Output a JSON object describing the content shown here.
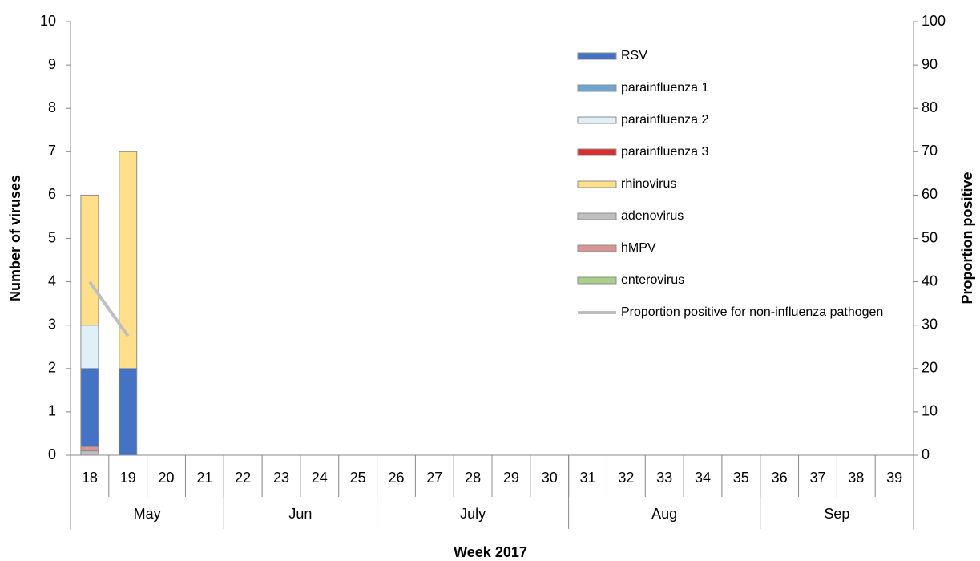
{
  "chart_data": {
    "type": "bar",
    "x_label": "Week 2017",
    "y_label": "Number of viruses",
    "y2_label": "Proportion positive",
    "categories": [
      "18",
      "19",
      "20",
      "21",
      "22",
      "23",
      "24",
      "25",
      "26",
      "27",
      "28",
      "29",
      "30",
      "31",
      "32",
      "33",
      "34",
      "35",
      "36",
      "37",
      "38",
      "39"
    ],
    "months": [
      "May",
      null,
      null,
      null,
      "Jun",
      null,
      null,
      null,
      "July",
      null,
      null,
      null,
      null,
      "Aug",
      null,
      null,
      null,
      null,
      "Sep",
      null,
      null,
      null
    ],
    "ylim": [
      0,
      10
    ],
    "yticks": [
      0,
      1,
      2,
      3,
      4,
      5,
      6,
      7,
      8,
      9,
      10
    ],
    "y2lim": [
      0,
      100
    ],
    "y2ticks": [
      0,
      10,
      20,
      30,
      40,
      50,
      60,
      70,
      80,
      90,
      100
    ],
    "series": [
      {
        "name": "RSV",
        "color": "#4472c4",
        "values": [
          1.8,
          2,
          0,
          0,
          0,
          0,
          0,
          0,
          0,
          0,
          0,
          0,
          0,
          0,
          0,
          0,
          0,
          0,
          0,
          0,
          0,
          0
        ]
      },
      {
        "name": "parainfluenza 1",
        "color": "#6fa3d0",
        "values": [
          0,
          0,
          0,
          0,
          0,
          0,
          0,
          0,
          0,
          0,
          0,
          0,
          0,
          0,
          0,
          0,
          0,
          0,
          0,
          0,
          0,
          0
        ]
      },
      {
        "name": "parainfluenza 2",
        "color": "#dff0f8",
        "values": [
          1,
          0,
          0,
          0,
          0,
          0,
          0,
          0,
          0,
          0,
          0,
          0,
          0,
          0,
          0,
          0,
          0,
          0,
          0,
          0,
          0,
          0
        ]
      },
      {
        "name": "parainfluenza 3",
        "color": "#d62f2f",
        "values": [
          0,
          0,
          0,
          0,
          0,
          0,
          0,
          0,
          0,
          0,
          0,
          0,
          0,
          0,
          0,
          0,
          0,
          0,
          0,
          0,
          0,
          0
        ]
      },
      {
        "name": "rhinovirus",
        "color": "#ffdf8a",
        "values": [
          3,
          5,
          0,
          0,
          0,
          0,
          0,
          0,
          0,
          0,
          0,
          0,
          0,
          0,
          0,
          0,
          0,
          0,
          0,
          0,
          0,
          0
        ]
      },
      {
        "name": "adenovirus",
        "color": "#bfbfbf",
        "values": [
          0.1,
          0,
          0,
          0,
          0,
          0,
          0,
          0,
          0,
          0,
          0,
          0,
          0,
          0,
          0,
          0,
          0,
          0,
          0,
          0,
          0,
          0
        ]
      },
      {
        "name": "hMPV",
        "color": "#d99594",
        "values": [
          0.1,
          0,
          0,
          0,
          0,
          0,
          0,
          0,
          0,
          0,
          0,
          0,
          0,
          0,
          0,
          0,
          0,
          0,
          0,
          0,
          0,
          0
        ]
      },
      {
        "name": "enterovirus",
        "color": "#a9cf8a",
        "values": [
          0,
          0,
          0,
          0,
          0,
          0,
          0,
          0,
          0,
          0,
          0,
          0,
          0,
          0,
          0,
          0,
          0,
          0,
          0,
          0,
          0,
          0
        ]
      },
      {
        "name": "Proportion positive for non-influenza pathogen",
        "color": "#bfbfbf",
        "type": "line",
        "axis": "y2",
        "values": [
          40,
          27.5,
          null,
          null,
          null,
          null,
          null,
          null,
          null,
          null,
          null,
          null,
          null,
          null,
          null,
          null,
          null,
          null,
          null,
          null,
          null,
          null
        ]
      }
    ]
  }
}
